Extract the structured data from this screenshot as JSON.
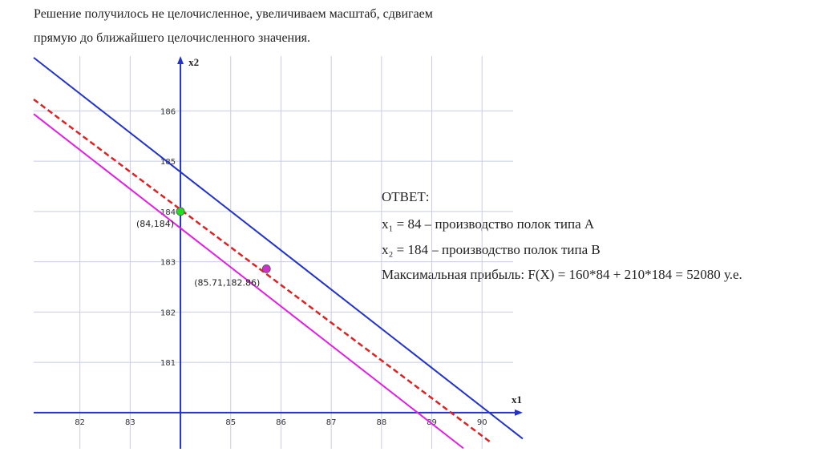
{
  "header": {
    "lines": [
      "Решение получилось не целочисленное, увеличиваем масштаб, сдвигаем",
      "прямую до ближайшего целочисленного значения."
    ]
  },
  "chart_data": {
    "type": "line",
    "xlabel": "x1",
    "ylabel": "x2",
    "xlim": [
      81.08,
      90.81
    ],
    "ylim": [
      179.28,
      187.09
    ],
    "xticks": [
      82,
      83,
      85,
      86,
      87,
      88,
      89,
      90
    ],
    "yticks": [
      181,
      182,
      183,
      184,
      185,
      186
    ],
    "axis_crossing": [
      84,
      180
    ],
    "grid": true,
    "series": [
      {
        "color": "#2233cc",
        "dashed": false,
        "x": [
          81.08,
          90.81
        ],
        "values": [
          187.06,
          179.48
        ]
      },
      {
        "color": "#e020e0",
        "dashed": false,
        "x": [
          81.08,
          89.63
        ],
        "values": [
          185.94,
          179.29
        ]
      },
      {
        "color": "#dd2222",
        "dashed": true,
        "x": [
          81.08,
          90.17
        ],
        "values": [
          186.23,
          179.41
        ]
      }
    ],
    "points": [
      {
        "x": 84,
        "y": 184,
        "label": "(84,184)",
        "color": "#22dd22"
      },
      {
        "x": 85.71,
        "y": 182.86,
        "label": "(85.71,182.86)",
        "color": "#cc33cc"
      }
    ]
  },
  "answer": {
    "title": "ОТВЕТ:",
    "lines": [
      "x₁ = 84 – производство полок типа A",
      "x₂ = 184 – производство полок типа B",
      "Максимальная прибыль: F(X) = 160*84 + 210*184 = 52080 у.е."
    ]
  }
}
